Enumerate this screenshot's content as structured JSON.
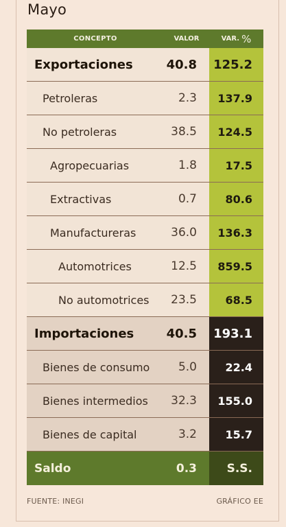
{
  "title": "Mayo",
  "headers": {
    "concepto": "CONCEPTO",
    "valor": "VALOR",
    "var": "VAR.",
    "var_pct": "%"
  },
  "footer": {
    "source": "FUENTE: INEGI",
    "credit": "GRÁFICO EE"
  },
  "colors": {
    "header_green": "#5e7a2c",
    "export_var_green": "#b4c33b",
    "import_var_dark": "#2a201a",
    "export_bg": "#f2e4d6",
    "import_bg": "#e3d2c3"
  },
  "chart_data": {
    "type": "table",
    "title": "Mayo",
    "columns": [
      "CONCEPTO",
      "VALOR",
      "VAR. %"
    ],
    "rows": [
      {
        "group": "export",
        "level": 0,
        "concept": "Exportaciones",
        "valor": "40.8",
        "var": "125.2"
      },
      {
        "group": "export",
        "level": 1,
        "concept": "Petroleras",
        "valor": "2.3",
        "var": "137.9"
      },
      {
        "group": "export",
        "level": 1,
        "concept": "No petroleras",
        "valor": "38.5",
        "var": "124.5"
      },
      {
        "group": "export",
        "level": 2,
        "concept": "Agropecuarias",
        "valor": "1.8",
        "var": "17.5"
      },
      {
        "group": "export",
        "level": 2,
        "concept": "Extractivas",
        "valor": "0.7",
        "var": "80.6"
      },
      {
        "group": "export",
        "level": 2,
        "concept": "Manufactureras",
        "valor": "36.0",
        "var": "136.3"
      },
      {
        "group": "export",
        "level": 3,
        "concept": "Automotrices",
        "valor": "12.5",
        "var": "859.5"
      },
      {
        "group": "export",
        "level": 3,
        "concept": "No automotrices",
        "valor": "23.5",
        "var": "68.5"
      },
      {
        "group": "import",
        "level": 0,
        "concept": "Importaciones",
        "valor": "40.5",
        "var": "193.1"
      },
      {
        "group": "import",
        "level": 1,
        "concept": "Bienes de consumo",
        "valor": "5.0",
        "var": "22.4"
      },
      {
        "group": "import",
        "level": 1,
        "concept": "Bienes intermedios",
        "valor": "32.3",
        "var": "155.0"
      },
      {
        "group": "import",
        "level": 1,
        "concept": "Bienes de capital",
        "valor": "3.2",
        "var": "15.7"
      },
      {
        "group": "saldo",
        "level": 0,
        "concept": "Saldo",
        "valor": "0.3",
        "var": "S.S."
      }
    ]
  }
}
